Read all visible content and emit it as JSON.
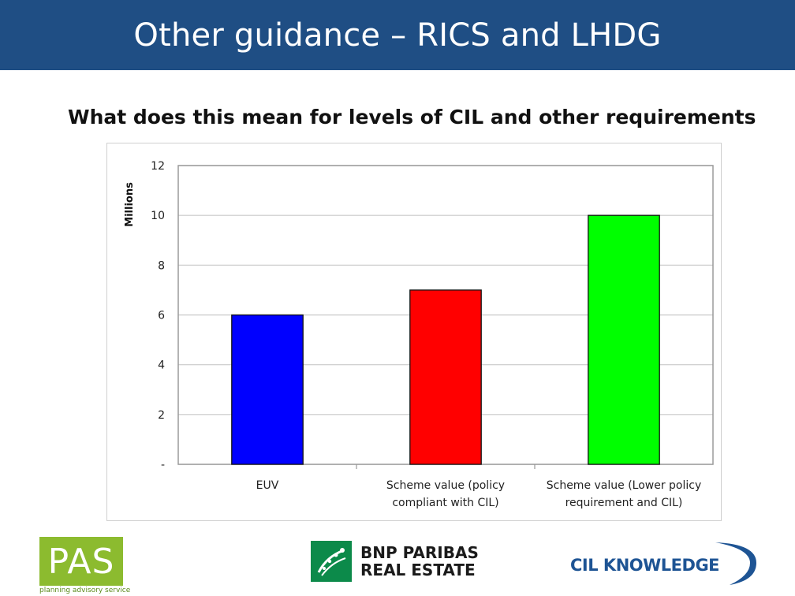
{
  "header": {
    "title": "Other guidance – RICS and LHDG"
  },
  "subtitle": "What does this mean for levels of CIL and other requirements",
  "chart_data": {
    "type": "bar",
    "title": "",
    "ylabel": "Millions",
    "xlabel": "",
    "ylim": [
      0,
      12
    ],
    "yticks": [
      0,
      2,
      4,
      6,
      8,
      10,
      12
    ],
    "ytick_labels": [
      "-",
      "2",
      "4",
      "6",
      "8",
      "10",
      "12"
    ],
    "grid": true,
    "categories": [
      [
        "EUV"
      ],
      [
        "Scheme value (policy",
        "compliant with CIL)"
      ],
      [
        "Scheme value (Lower policy",
        "requirement and CIL)"
      ]
    ],
    "values": [
      6,
      7,
      10
    ],
    "colors": [
      "#0000ff",
      "#ff0000",
      "#00ff00"
    ]
  },
  "logos": {
    "pas": {
      "text": "PAS",
      "tagline": "planning advisory service"
    },
    "bnp": {
      "line1": "BNP PARIBAS",
      "line2": "REAL ESTATE"
    },
    "cil": {
      "text": "CIL KNOWLEDGE"
    }
  }
}
